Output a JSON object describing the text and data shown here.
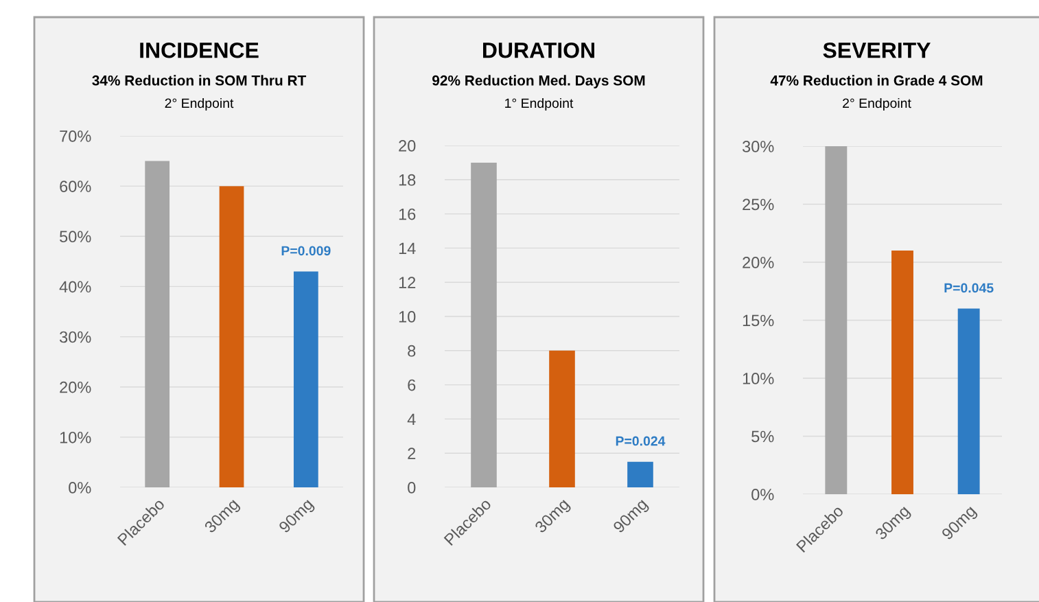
{
  "chart_data": [
    {
      "type": "bar",
      "title": "INCIDENCE",
      "subtitle": "34% Reduction in SOM Thru RT",
      "annotations": [
        "2° Endpoint",
        {
          "text": "P=0.009",
          "x": "90mg",
          "y": 43
        }
      ],
      "categories": [
        "Placebo",
        "30mg",
        "90mg"
      ],
      "values": [
        65,
        60,
        43
      ],
      "colors": [
        "#a6a6a6",
        "#d4600f",
        "#2e7cc4"
      ],
      "ylim": [
        0,
        70
      ],
      "yticks": [
        {
          "value": 0,
          "label": "0%"
        },
        {
          "value": 10,
          "label": "10%"
        },
        {
          "value": 20,
          "label": "20%"
        },
        {
          "value": 30,
          "label": "30%"
        },
        {
          "value": 40,
          "label": "40%"
        },
        {
          "value": 50,
          "label": "50%"
        },
        {
          "value": 60,
          "label": "60%"
        },
        {
          "value": 70,
          "label": "70%"
        }
      ],
      "grid": "y",
      "legend": false
    },
    {
      "type": "bar",
      "title": "DURATION",
      "subtitle": "92% Reduction Med. Days SOM",
      "annotations": [
        "1° Endpoint",
        {
          "text": "P=0.024",
          "x": "90mg",
          "y": 1.5
        }
      ],
      "categories": [
        "Placebo",
        "30mg",
        "90mg"
      ],
      "values": [
        19,
        8,
        1.5
      ],
      "colors": [
        "#a6a6a6",
        "#d4600f",
        "#2e7cc4"
      ],
      "ylim": [
        0,
        20
      ],
      "yticks": [
        0,
        2,
        4,
        6,
        8,
        10,
        12,
        14,
        16,
        18,
        20
      ],
      "grid": "y",
      "legend": false
    },
    {
      "type": "bar",
      "title": "SEVERITY",
      "subtitle": "47% Reduction in Grade 4 SOM",
      "annotations": [
        "2° Endpoint",
        {
          "text": "P=0.045",
          "x": "90mg",
          "y": 16
        }
      ],
      "categories": [
        "Placebo",
        "30mg",
        "90mg"
      ],
      "values": [
        30,
        21,
        16
      ],
      "colors": [
        "#a6a6a6",
        "#d4600f",
        "#2e7cc4"
      ],
      "ylim": [
        0,
        30
      ],
      "yticks": [
        {
          "value": 0,
          "label": "0%"
        },
        {
          "value": 5,
          "label": "5%"
        },
        {
          "value": 10,
          "label": "10%"
        },
        {
          "value": 15,
          "label": "15%"
        },
        {
          "value": 20,
          "label": "20%"
        },
        {
          "value": 25,
          "label": "25%"
        },
        {
          "value": 30,
          "label": "30%"
        }
      ],
      "grid": "y",
      "legend": false
    }
  ]
}
